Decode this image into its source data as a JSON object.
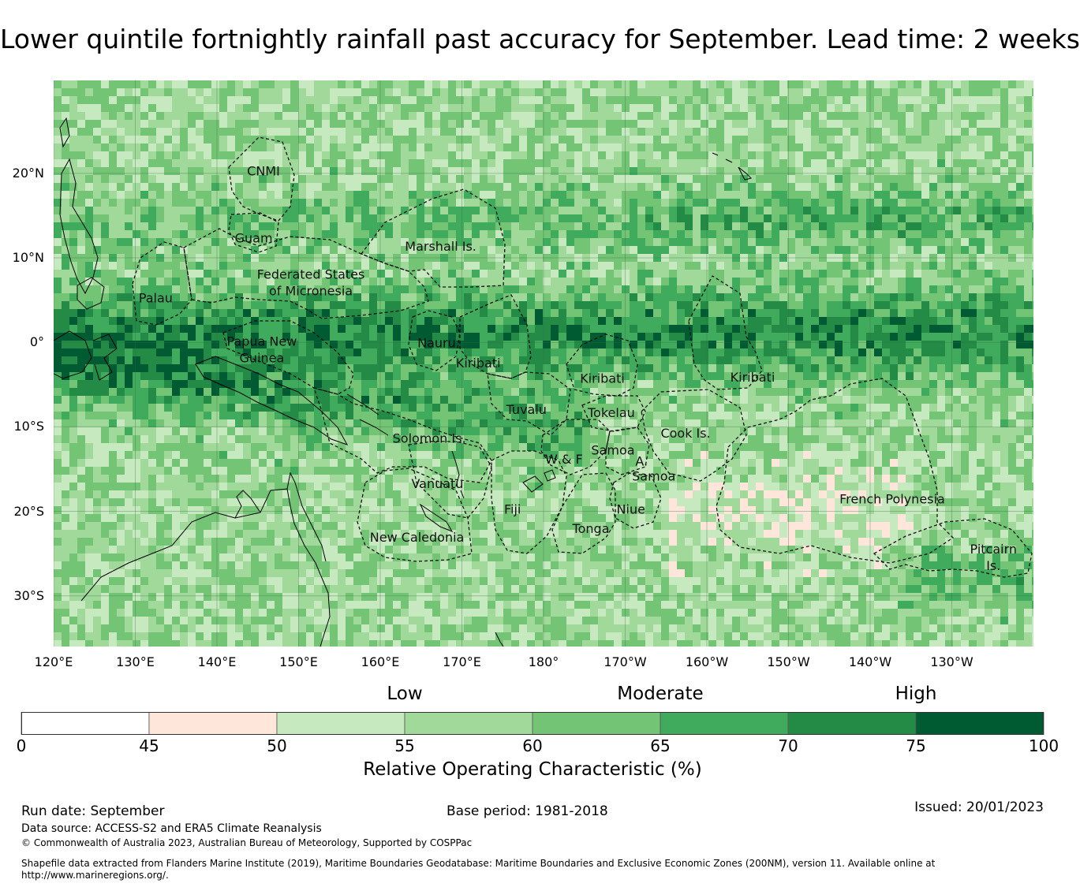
{
  "title": "Lower quintile fortnightly rainfall past accuracy for September. Lead time: 2 weeks",
  "map": {
    "lon_range": [
      120,
      240
    ],
    "lat_range": [
      -36,
      31
    ],
    "lat_ticks": [
      {
        "value": 20,
        "label": "20°N"
      },
      {
        "value": 10,
        "label": "10°N"
      },
      {
        "value": 0,
        "label": "0°"
      },
      {
        "value": -10,
        "label": "10°S"
      },
      {
        "value": -20,
        "label": "20°S"
      },
      {
        "value": -30,
        "label": "30°S"
      }
    ],
    "lon_ticks": [
      {
        "value": 120,
        "label": "120°E"
      },
      {
        "value": 130,
        "label": "130°E"
      },
      {
        "value": 140,
        "label": "140°E"
      },
      {
        "value": 150,
        "label": "150°E"
      },
      {
        "value": 160,
        "label": "160°E"
      },
      {
        "value": 170,
        "label": "170°E"
      },
      {
        "value": 180,
        "label": "180°"
      },
      {
        "value": 190,
        "label": "170°W"
      },
      {
        "value": 200,
        "label": "160°W"
      },
      {
        "value": 210,
        "label": "150°W"
      },
      {
        "value": 220,
        "label": "140°W"
      },
      {
        "value": 230,
        "label": "130°W"
      }
    ],
    "regions": [
      {
        "name": "CNMI",
        "lines": [
          "CNMI"
        ],
        "lon": 145.7,
        "lat": 20.2
      },
      {
        "name": "Guam",
        "lines": [
          "Guam"
        ],
        "lon": 144.5,
        "lat": 12.3
      },
      {
        "name": "Marshall Is.",
        "lines": [
          "Marshall Is."
        ],
        "lon": 167.4,
        "lat": 11.3
      },
      {
        "name": "Federated States of Micronesia",
        "lines": [
          "Federated States",
          "of Micronesia"
        ],
        "lon": 151.5,
        "lat": 7.0
      },
      {
        "name": "Palau",
        "lines": [
          "Palau"
        ],
        "lon": 132.5,
        "lat": 5.2
      },
      {
        "name": "Papua New Guinea",
        "lines": [
          "Papua New",
          "Guinea"
        ],
        "lon": 145.5,
        "lat": -0.9
      },
      {
        "name": "Nauru",
        "lines": [
          "Nauru"
        ],
        "lon": 166.9,
        "lat": -0.1
      },
      {
        "name": "Kiribati",
        "lines": [
          "Kiribati"
        ],
        "lon": 172.0,
        "lat": -2.5
      },
      {
        "name": "Kiribati",
        "lines": [
          "Kiribati"
        ],
        "lon": 187.2,
        "lat": -4.3
      },
      {
        "name": "Kiribati",
        "lines": [
          "Kiribati"
        ],
        "lon": 205.6,
        "lat": -4.2
      },
      {
        "name": "Tuvalu",
        "lines": [
          "Tuvalu"
        ],
        "lon": 177.9,
        "lat": -8.0
      },
      {
        "name": "Tokelau",
        "lines": [
          "Tokelau"
        ],
        "lon": 188.3,
        "lat": -8.4
      },
      {
        "name": "Solomon Is.",
        "lines": [
          "Solomon Is."
        ],
        "lon": 166.0,
        "lat": -11.4
      },
      {
        "name": "Cook Is.",
        "lines": [
          "Cook Is."
        ],
        "lon": 197.4,
        "lat": -10.8
      },
      {
        "name": "Samoa",
        "lines": [
          "Samoa"
        ],
        "lon": 188.5,
        "lat": -12.8
      },
      {
        "name": "W & F",
        "lines": [
          "W & F"
        ],
        "lon": 182.5,
        "lat": -13.9
      },
      {
        "name": "A.",
        "lines": [
          "A."
        ],
        "lon": 192.0,
        "lat": -14.1
      },
      {
        "name": "Samoa",
        "lines": [
          "Samoa"
        ],
        "lon": 193.5,
        "lat": -15.9
      },
      {
        "name": "Vanuatu",
        "lines": [
          "Vanuatu"
        ],
        "lon": 167.0,
        "lat": -16.8
      },
      {
        "name": "French Polynesia",
        "lines": [
          "French Polynesia"
        ],
        "lon": 222.7,
        "lat": -18.6
      },
      {
        "name": "Fiji",
        "lines": [
          "Fiji"
        ],
        "lon": 176.2,
        "lat": -19.8
      },
      {
        "name": "Niue",
        "lines": [
          "Niue"
        ],
        "lon": 190.7,
        "lat": -19.8
      },
      {
        "name": "Tonga",
        "lines": [
          "Tonga"
        ],
        "lon": 185.8,
        "lat": -22.1
      },
      {
        "name": "New Caledonia",
        "lines": [
          "New Caledonia"
        ],
        "lon": 164.5,
        "lat": -23.1
      },
      {
        "name": "Pitcairn Is.",
        "lines": [
          "Pitcairn",
          "Is."
        ],
        "lon": 235.1,
        "lat": -25.5
      }
    ]
  },
  "colors": {
    "bins": [
      "#ffffff",
      "#fee6da",
      "#c7e9c0",
      "#a1d99b",
      "#74c476",
      "#41ab5d",
      "#238b45",
      "#005a32"
    ]
  },
  "colorbar": {
    "bounds": [
      0,
      45,
      50,
      55,
      60,
      65,
      70,
      75,
      100
    ],
    "tick_labels": [
      "0",
      "45",
      "50",
      "55",
      "60",
      "65",
      "70",
      "75",
      "100"
    ],
    "categories": [
      {
        "label": "Low",
        "center_value": 55
      },
      {
        "label": "Moderate",
        "center_value": 65
      },
      {
        "label": "High",
        "center_value": 75
      }
    ],
    "label": "Relative Operating Characteristic (%)"
  },
  "footer": {
    "run_date": "Run date: September",
    "base_period": "Base period: 1981-2018",
    "issued": "Issued: 20/01/2023",
    "data_source": "Data source: ACCESS-S2 and ERA5 Climate Reanalysis",
    "copyright": "© Commonwealth of Australia 2023, Australian Bureau of Meteorology, Supported by COSPPac",
    "shapefile_line1": "Shapefile data extracted from Flanders Marine Institute (2019), Maritime Boundaries Geodatabase: Maritime Boundaries and Exclusive Economic Zones (200NM), version 11. Available online at",
    "shapefile_line2": "http://www.marineregions.org/."
  }
}
